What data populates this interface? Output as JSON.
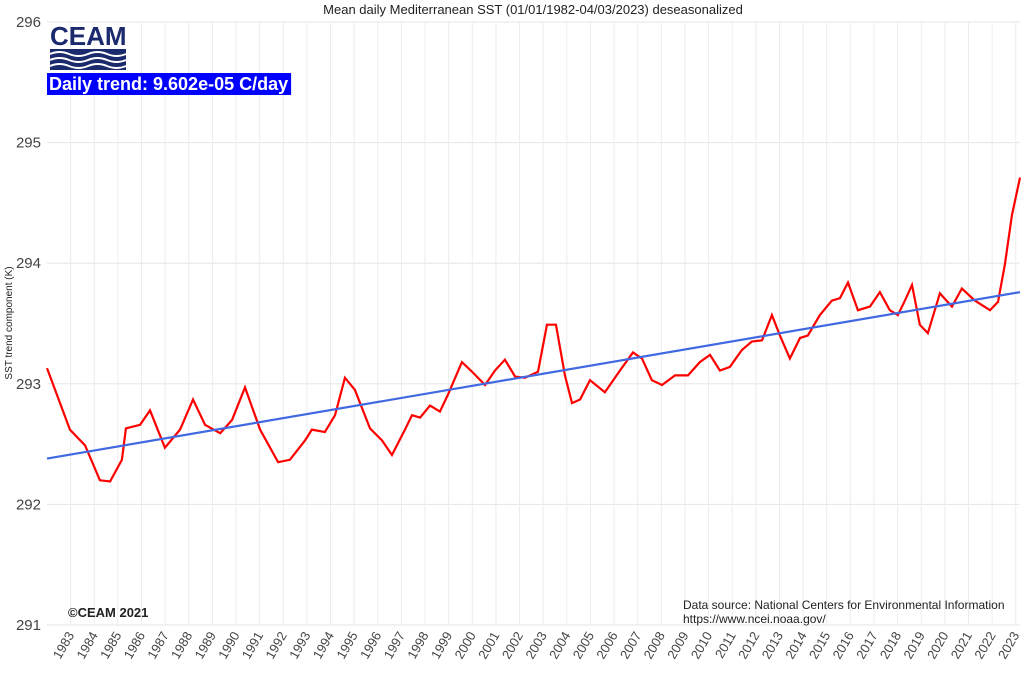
{
  "chart_data": {
    "type": "line",
    "title": "Mean daily Mediterranean SST (01/01/1982-04/03/2023) deseasonalized",
    "y_label": "SST trend component (K)",
    "logo": "CEAM",
    "annotations": [
      "Daily trend: 9.602e-05 C/day",
      "©CEAM 2021",
      "Data source: National Centers for Environmental Information",
      "https://www.ncei.noaa.gov/"
    ],
    "xlim": [
      1982,
      2023.18
    ],
    "xticks": [
      1983,
      1984,
      1985,
      1986,
      1987,
      1988,
      1989,
      1990,
      1991,
      1992,
      1993,
      1994,
      1995,
      1996,
      1997,
      1998,
      1999,
      2000,
      2001,
      2002,
      2003,
      2004,
      2005,
      2006,
      2007,
      2008,
      2009,
      2010,
      2011,
      2012,
      2013,
      2014,
      2015,
      2016,
      2017,
      2018,
      2019,
      2020,
      2021,
      2022,
      2023
    ],
    "ylim": [
      291,
      296
    ],
    "yticks": [
      291,
      292,
      293,
      294,
      295,
      296
    ],
    "grid": true,
    "series": [
      {
        "name": "SST trend component",
        "color": "#ff0000",
        "x": [
          1982.0,
          1982.97,
          1983.61,
          1984.24,
          1984.67,
          1985.17,
          1985.34,
          1985.94,
          1986.36,
          1986.99,
          1987.63,
          1988.18,
          1988.69,
          1989.33,
          1989.83,
          1990.38,
          1991.02,
          1991.78,
          1992.28,
          1992.92,
          1993.21,
          1993.76,
          1994.19,
          1994.61,
          1995.03,
          1995.67,
          1996.18,
          1996.6,
          1997.15,
          1997.45,
          1997.79,
          1998.21,
          1998.63,
          1998.97,
          1999.56,
          1999.99,
          2000.54,
          2000.96,
          2001.38,
          2001.81,
          2002.23,
          2002.78,
          2003.16,
          2003.54,
          2003.92,
          2004.22,
          2004.56,
          2004.98,
          2005.61,
          2006.25,
          2006.8,
          2007.18,
          2007.6,
          2008.03,
          2008.58,
          2009.13,
          2009.63,
          2010.06,
          2010.48,
          2010.9,
          2011.41,
          2011.83,
          2012.26,
          2012.68,
          2013.02,
          2013.44,
          2013.87,
          2014.2,
          2014.71,
          2015.22,
          2015.56,
          2015.9,
          2016.32,
          2016.83,
          2017.25,
          2017.67,
          2018.01,
          2018.31,
          2018.61,
          2018.94,
          2019.28,
          2019.79,
          2020.3,
          2020.72,
          2021.27,
          2021.91,
          2022.25,
          2022.54,
          2022.84,
          2023.18
        ],
        "values": [
          293.13,
          292.62,
          292.49,
          292.2,
          292.19,
          292.37,
          292.63,
          292.66,
          292.78,
          292.47,
          292.62,
          292.87,
          292.66,
          292.59,
          292.7,
          292.97,
          292.62,
          292.35,
          292.37,
          292.53,
          292.62,
          292.6,
          292.74,
          293.05,
          292.95,
          292.63,
          292.53,
          292.41,
          292.62,
          292.74,
          292.72,
          292.82,
          292.77,
          292.91,
          293.18,
          293.1,
          292.99,
          293.11,
          293.2,
          293.06,
          293.05,
          293.1,
          293.49,
          293.49,
          293.07,
          292.84,
          292.87,
          293.03,
          292.93,
          293.11,
          293.26,
          293.21,
          293.03,
          292.99,
          293.07,
          293.07,
          293.18,
          293.24,
          293.11,
          293.14,
          293.28,
          293.35,
          293.36,
          293.57,
          293.4,
          293.21,
          293.38,
          293.4,
          293.57,
          293.69,
          293.71,
          293.84,
          293.61,
          293.64,
          293.76,
          293.61,
          293.57,
          293.69,
          293.82,
          293.49,
          293.42,
          293.75,
          293.64,
          293.79,
          293.69,
          293.61,
          293.68,
          293.99,
          294.4,
          294.71
        ]
      },
      {
        "name": "Linear trend",
        "color": "#4169e1",
        "x": [
          1982.0,
          2023.18
        ],
        "values": [
          292.38,
          293.76
        ]
      }
    ]
  }
}
